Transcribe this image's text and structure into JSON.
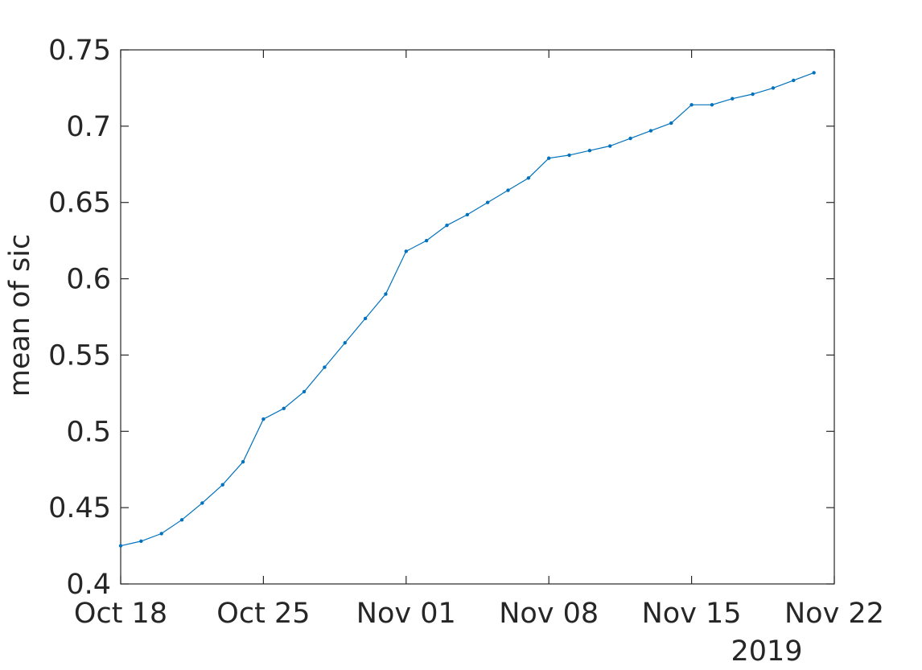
{
  "chart_data": {
    "type": "line",
    "title": "",
    "xlabel": "",
    "ylabel": "mean of sic",
    "year_label": "2019",
    "ylim": [
      0.4,
      0.75
    ],
    "xlim": [
      "2019-10-18",
      "2019-11-22"
    ],
    "yticks": [
      "0.4",
      "0.45",
      "0.5",
      "0.55",
      "0.6",
      "0.65",
      "0.7",
      "0.75"
    ],
    "xticks": [
      {
        "date": "2019-10-18",
        "label": "Oct 18"
      },
      {
        "date": "2019-10-25",
        "label": "Oct 25"
      },
      {
        "date": "2019-11-01",
        "label": "Nov 01"
      },
      {
        "date": "2019-11-08",
        "label": "Nov 08"
      },
      {
        "date": "2019-11-15",
        "label": "Nov 15"
      },
      {
        "date": "2019-11-22",
        "label": "Nov 22"
      }
    ],
    "grid": false,
    "line_color": "#0072BD",
    "x": [
      "2019-10-18",
      "2019-10-19",
      "2019-10-20",
      "2019-10-21",
      "2019-10-22",
      "2019-10-23",
      "2019-10-24",
      "2019-10-25",
      "2019-10-26",
      "2019-10-27",
      "2019-10-28",
      "2019-10-29",
      "2019-10-30",
      "2019-10-31",
      "2019-11-01",
      "2019-11-02",
      "2019-11-03",
      "2019-11-04",
      "2019-11-05",
      "2019-11-06",
      "2019-11-07",
      "2019-11-08",
      "2019-11-09",
      "2019-11-10",
      "2019-11-11",
      "2019-11-12",
      "2019-11-13",
      "2019-11-14",
      "2019-11-15",
      "2019-11-16",
      "2019-11-17",
      "2019-11-18",
      "2019-11-19",
      "2019-11-20",
      "2019-11-21"
    ],
    "y": [
      0.425,
      0.428,
      0.433,
      0.442,
      0.453,
      0.465,
      0.48,
      0.508,
      0.515,
      0.526,
      0.542,
      0.558,
      0.574,
      0.59,
      0.618,
      0.625,
      0.635,
      0.642,
      0.65,
      0.658,
      0.666,
      0.679,
      0.681,
      0.684,
      0.687,
      0.692,
      0.697,
      0.702,
      0.714,
      0.714,
      0.718,
      0.721,
      0.725,
      0.73,
      0.735
    ]
  }
}
